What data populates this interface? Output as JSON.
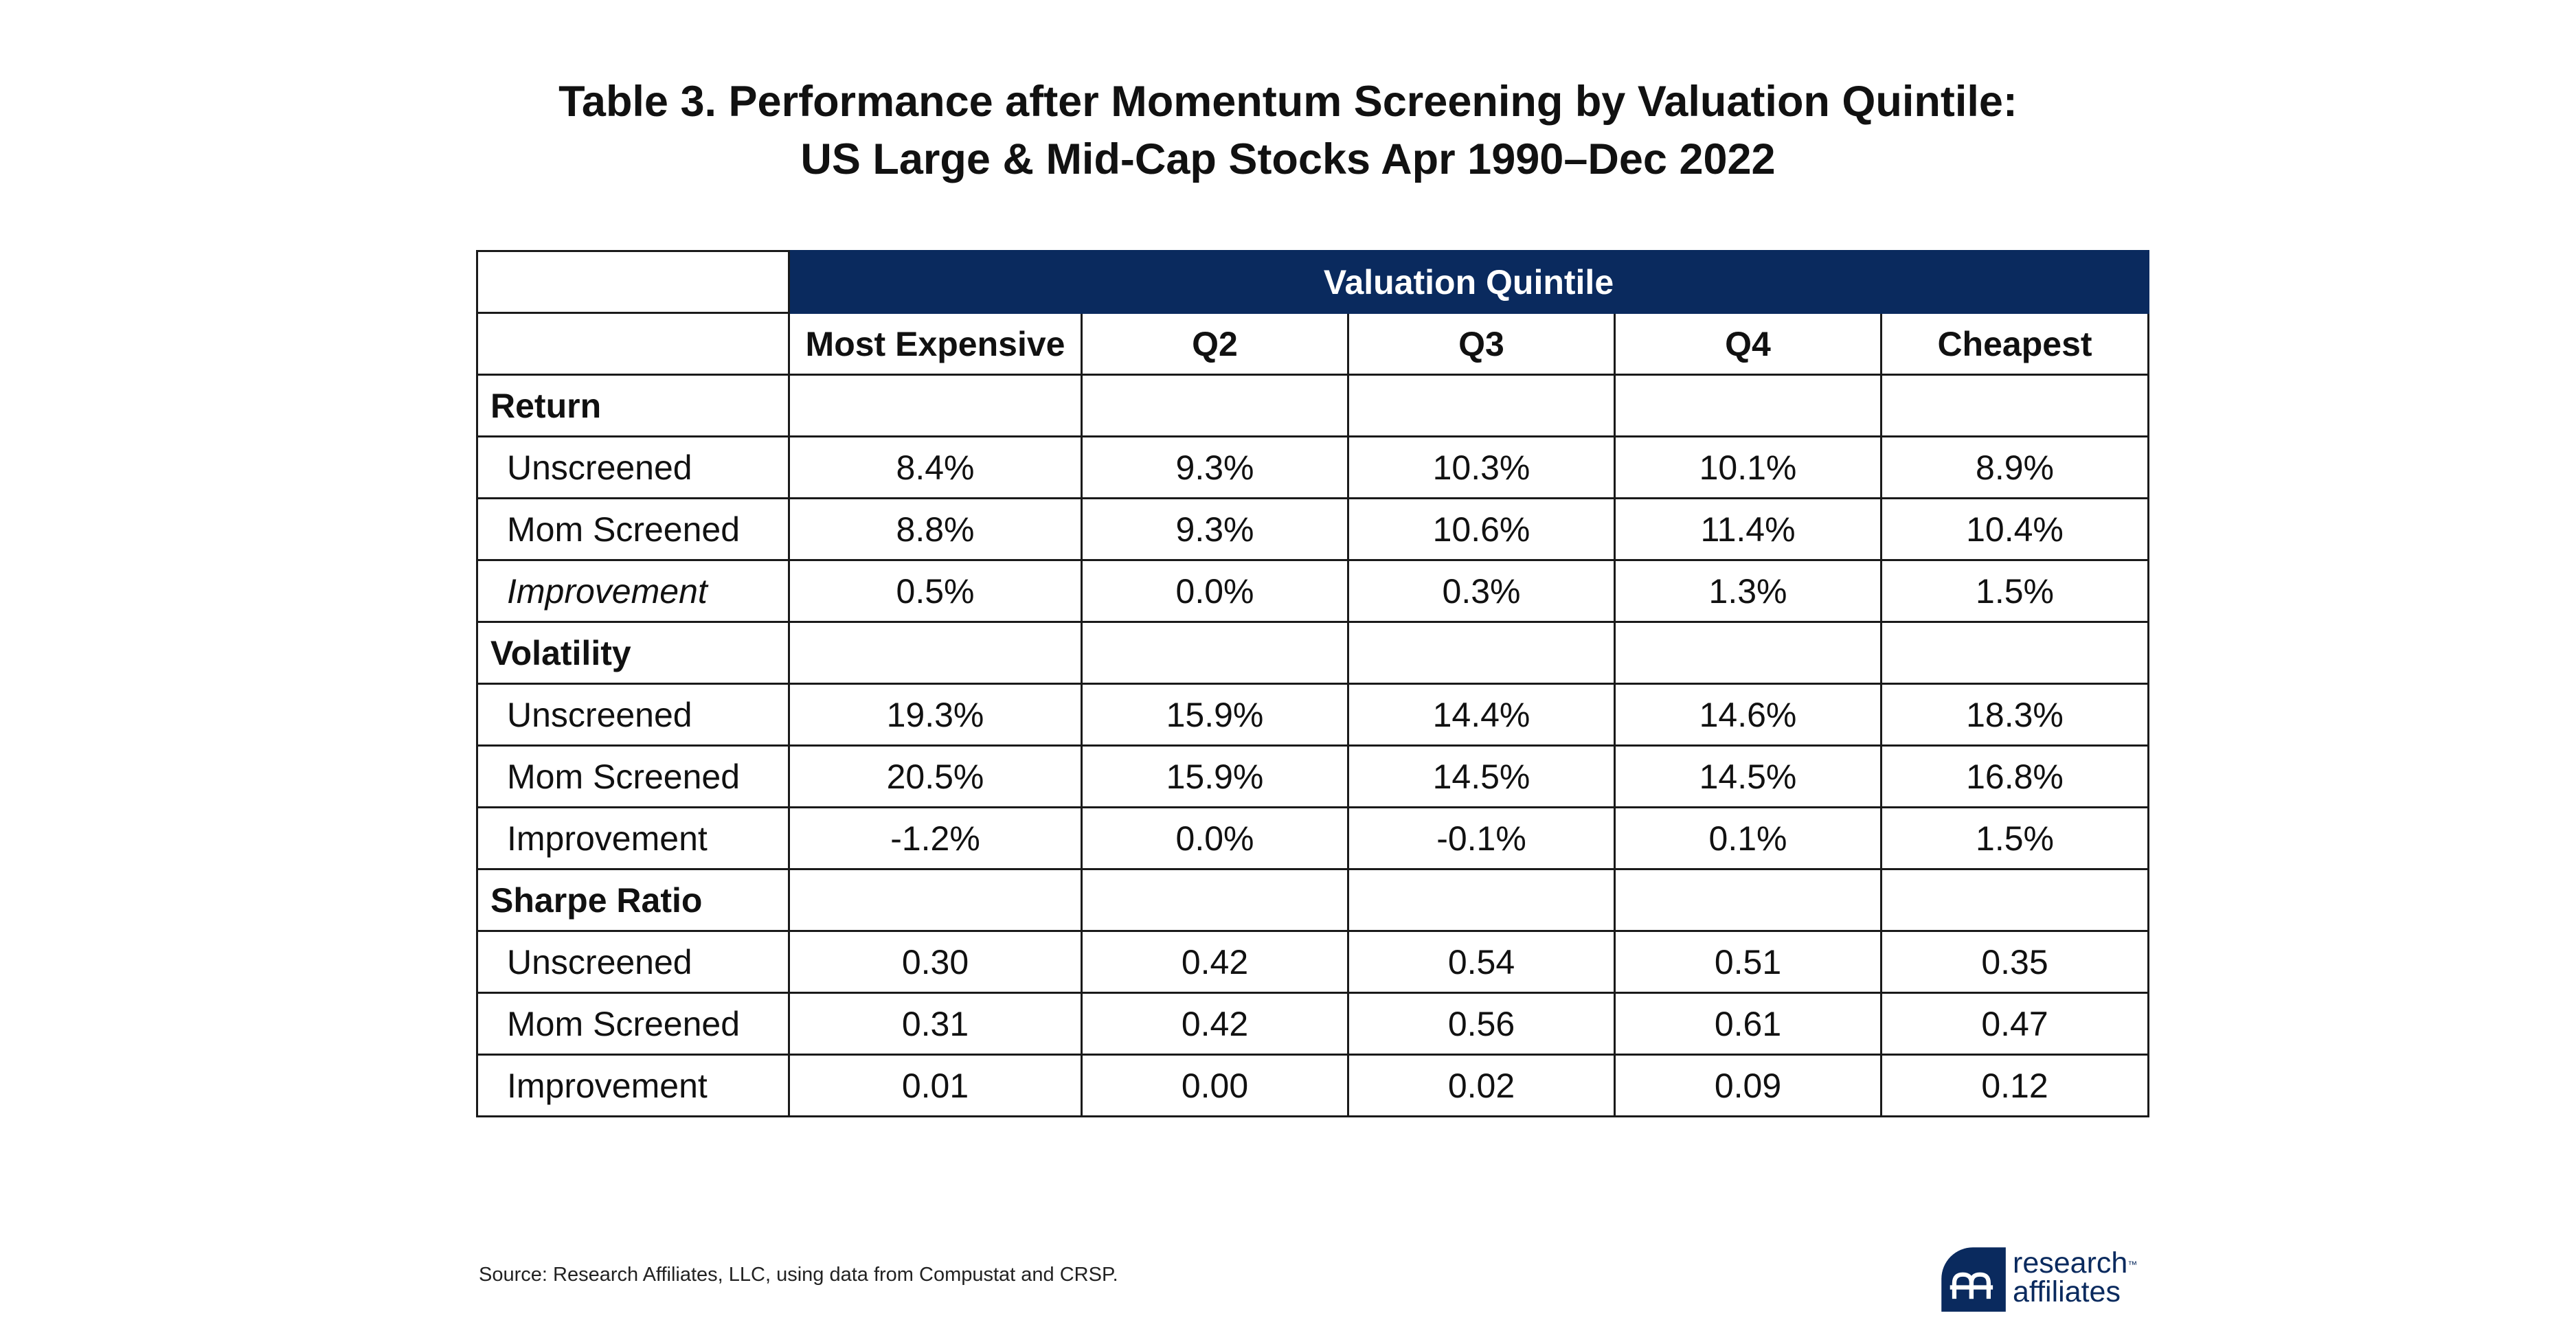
{
  "title": {
    "line1": "Table 3.  Performance after Momentum Screening by Valuation Quintile:",
    "line2": "US Large & Mid-Cap Stocks Apr 1990–Dec 2022"
  },
  "table": {
    "group_header": "Valuation Quintile",
    "columns": [
      "Most Expensive",
      "Q2",
      "Q3",
      "Q4",
      "Cheapest"
    ],
    "sections": [
      {
        "name": "Return",
        "rows": [
          {
            "label": "Unscreened",
            "values": [
              "8.4%",
              "9.3%",
              "10.3%",
              "10.1%",
              "8.9%"
            ]
          },
          {
            "label": "Mom Screened",
            "values": [
              "8.8%",
              "9.3%",
              "10.6%",
              "11.4%",
              "10.4%"
            ]
          },
          {
            "label": "Improvement",
            "values": [
              "0.5%",
              "0.0%",
              "0.3%",
              "1.3%",
              "1.5%"
            ]
          }
        ]
      },
      {
        "name": "Volatility",
        "rows": [
          {
            "label": "Unscreened",
            "values": [
              "19.3%",
              "15.9%",
              "14.4%",
              "14.6%",
              "18.3%"
            ]
          },
          {
            "label": "Mom Screened",
            "values": [
              "20.5%",
              "15.9%",
              "14.5%",
              "14.5%",
              "16.8%"
            ]
          },
          {
            "label": "Improvement",
            "values": [
              "-1.2%",
              "0.0%",
              "-0.1%",
              "0.1%",
              "1.5%"
            ]
          }
        ]
      },
      {
        "name": "Sharpe Ratio",
        "rows": [
          {
            "label": "Unscreened",
            "values": [
              "0.30",
              "0.42",
              "0.54",
              "0.51",
              "0.35"
            ]
          },
          {
            "label": "Mom Screened",
            "values": [
              "0.31",
              "0.42",
              "0.56",
              "0.61",
              "0.47"
            ]
          },
          {
            "label": "Improvement",
            "values": [
              "0.01",
              "0.00",
              "0.02",
              "0.09",
              "0.12"
            ]
          }
        ]
      }
    ]
  },
  "source": "Source: Research Affiliates, LLC, using data from Compustat and CRSP.",
  "logo": {
    "line1": "research",
    "line2": "affiliates",
    "tm": "™",
    "icon": "research-affiliates-mark",
    "color": "#0a2a5e"
  },
  "colors": {
    "header_band": "#0a2a5e",
    "header_text": "#ffffff",
    "grid": "#1a1a1a"
  }
}
